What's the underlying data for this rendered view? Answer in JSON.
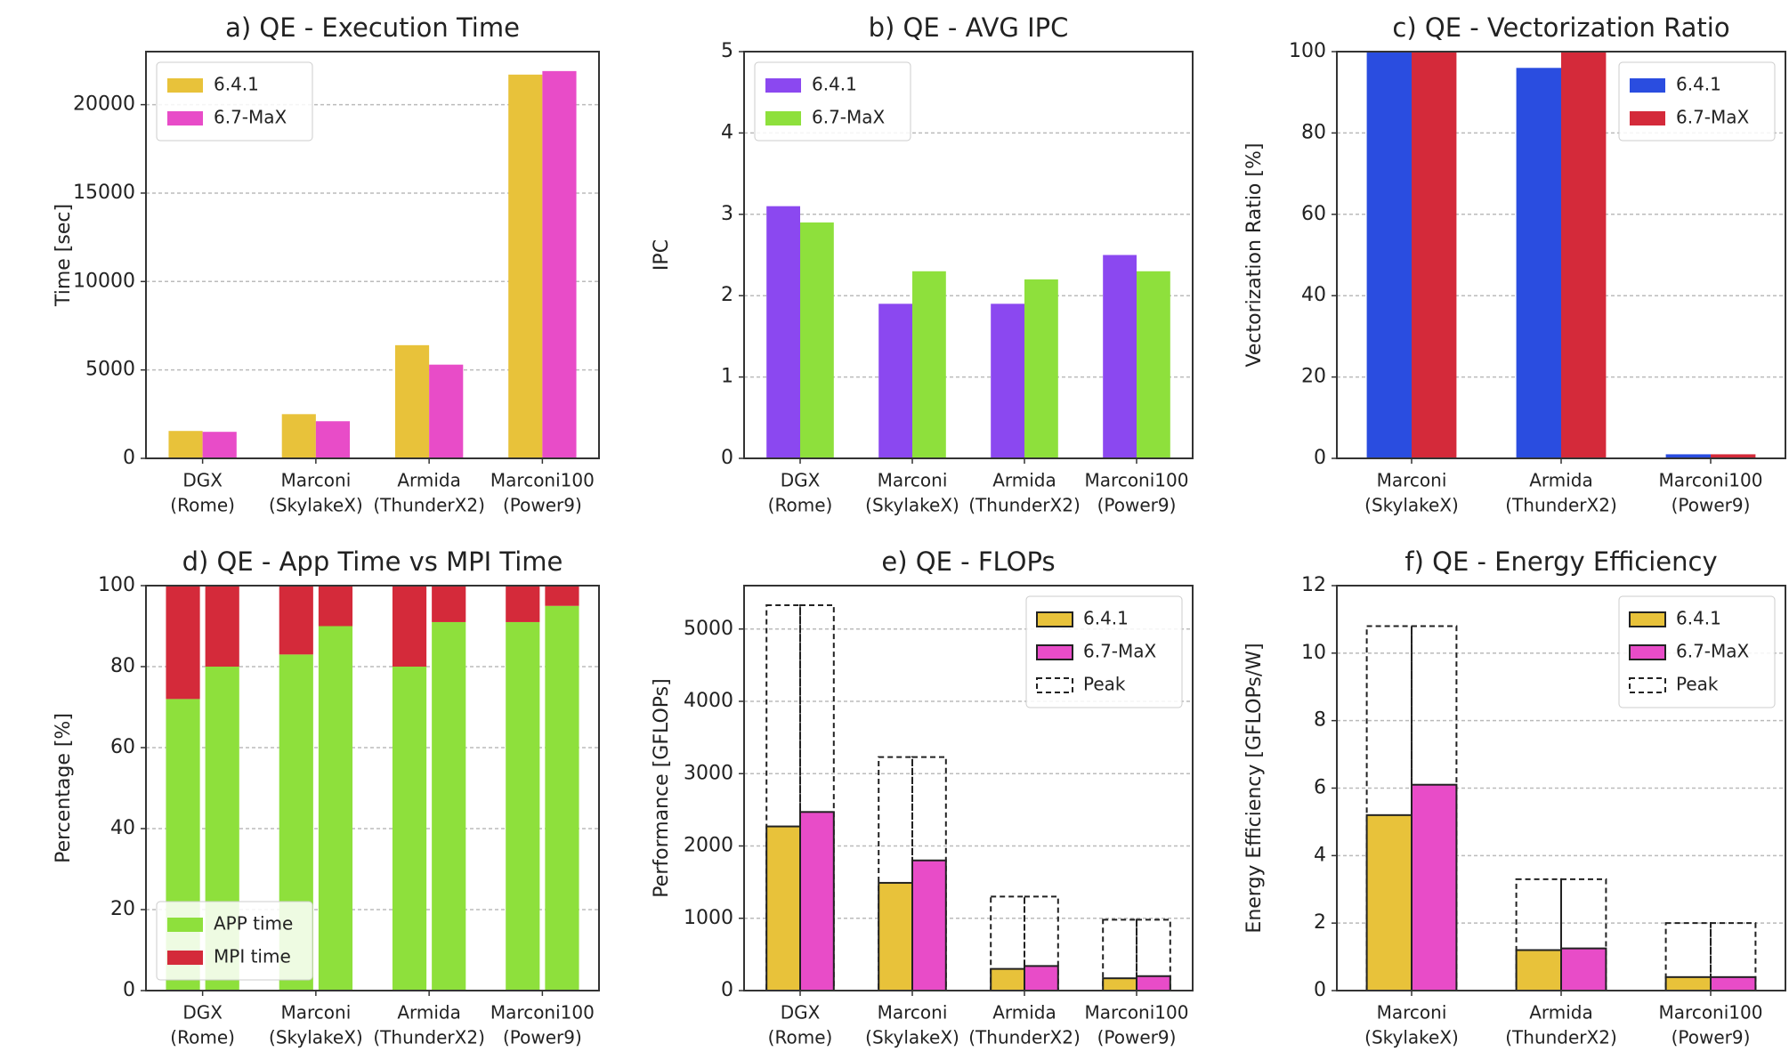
{
  "chart_data": [
    {
      "type": "bar",
      "title": "a) QE - Execution Time",
      "ylabel": "Time [sec]",
      "categories": [
        [
          "DGX",
          "(Rome)"
        ],
        [
          "Marconi",
          "(SkylakeX)"
        ],
        [
          "Armida",
          "(ThunderX2)"
        ],
        [
          "Marconi100",
          "(Power9)"
        ]
      ],
      "series": [
        {
          "name": "6.4.1",
          "color": "#e8c23a",
          "values": [
            1550,
            2500,
            6400,
            21700
          ]
        },
        {
          "name": "6.7-MaX",
          "color": "#e84cc8",
          "values": [
            1500,
            2100,
            5300,
            21900
          ]
        }
      ],
      "ylim": [
        0,
        23000
      ],
      "yticks": [
        0,
        5000,
        10000,
        15000,
        20000
      ],
      "grid": true,
      "legend": "upper left"
    },
    {
      "type": "bar",
      "title": "b) QE - AVG IPC",
      "ylabel": "IPC",
      "categories": [
        [
          "DGX",
          "(Rome)"
        ],
        [
          "Marconi",
          "(SkylakeX)"
        ],
        [
          "Armida",
          "(ThunderX2)"
        ],
        [
          "Marconi100",
          "(Power9)"
        ]
      ],
      "series": [
        {
          "name": "6.4.1",
          "color": "#8b48f0",
          "values": [
            3.1,
            1.9,
            1.9,
            2.5
          ]
        },
        {
          "name": "6.7-MaX",
          "color": "#8ee03c",
          "values": [
            2.9,
            2.3,
            2.2,
            2.3
          ]
        }
      ],
      "ylim": [
        0,
        5
      ],
      "yticks": [
        0,
        1,
        2,
        3,
        4,
        5
      ],
      "grid": true,
      "legend": "upper left"
    },
    {
      "type": "bar",
      "title": "c) QE - Vectorization Ratio",
      "ylabel": "Vectorization Ratio [%]",
      "categories": [
        [
          "Marconi",
          "(SkylakeX)"
        ],
        [
          "Armida",
          "(ThunderX2)"
        ],
        [
          "Marconi100",
          "(Power9)"
        ]
      ],
      "series": [
        {
          "name": "6.4.1",
          "color": "#2a4de0",
          "values": [
            100,
            96,
            1
          ]
        },
        {
          "name": "6.7-MaX",
          "color": "#d42a3a",
          "values": [
            100,
            100,
            1
          ]
        }
      ],
      "ylim": [
        0,
        100
      ],
      "yticks": [
        0,
        20,
        40,
        60,
        80,
        100
      ],
      "grid": true,
      "legend": "upper right"
    },
    {
      "type": "stacked-bar",
      "title": "d) QE - App Time vs MPI Time",
      "ylabel": "Percentage [%]",
      "categories": [
        [
          "DGX",
          "(Rome)"
        ],
        [
          "Marconi",
          "(SkylakeX)"
        ],
        [
          "Armida",
          "(ThunderX2)"
        ],
        [
          "Marconi100",
          "(Power9)"
        ]
      ],
      "series": [
        {
          "name": "APP time",
          "color": "#8ee03c",
          "values": [
            [
              72,
              80
            ],
            [
              83,
              90
            ],
            [
              80,
              91
            ],
            [
              91,
              95
            ]
          ]
        },
        {
          "name": "MPI time",
          "color": "#d42a3a",
          "values": [
            [
              28,
              20
            ],
            [
              17,
              10
            ],
            [
              20,
              9
            ],
            [
              9,
              5
            ]
          ]
        }
      ],
      "ylim": [
        0,
        100
      ],
      "yticks": [
        0,
        20,
        40,
        60,
        80,
        100
      ],
      "grid": true,
      "legend": "lower left"
    },
    {
      "type": "bar",
      "title": "e) QE - FLOPs",
      "ylabel": "Performance [GFLOPs]",
      "categories": [
        [
          "DGX",
          "(Rome)"
        ],
        [
          "Marconi",
          "(SkylakeX)"
        ],
        [
          "Armida",
          "(ThunderX2)"
        ],
        [
          "Marconi100",
          "(Power9)"
        ]
      ],
      "series": [
        {
          "name": "6.4.1",
          "color": "#e8c23a",
          "values": [
            2270,
            1490,
            300,
            170
          ]
        },
        {
          "name": "6.7-MaX",
          "color": "#e84cc8",
          "values": [
            2470,
            1800,
            340,
            200
          ]
        },
        {
          "name": "Peak",
          "color": "none",
          "linestyle": "dashed",
          "values": [
            5330,
            3230,
            1300,
            980
          ]
        }
      ],
      "edgecolor": "#222222",
      "ylim": [
        0,
        5600
      ],
      "yticks": [
        0,
        1000,
        2000,
        3000,
        4000,
        5000
      ],
      "grid": true,
      "legend": "upper right"
    },
    {
      "type": "bar",
      "title": "f) QE - Energy Efficiency",
      "ylabel": "Energy Efficiency [GFLOPs/W]",
      "categories": [
        [
          "Marconi",
          "(SkylakeX)"
        ],
        [
          "Armida",
          "(ThunderX2)"
        ],
        [
          "Marconi100",
          "(Power9)"
        ]
      ],
      "series": [
        {
          "name": "6.4.1",
          "color": "#e8c23a",
          "values": [
            5.2,
            1.2,
            0.4
          ]
        },
        {
          "name": "6.7-MaX",
          "color": "#e84cc8",
          "values": [
            6.1,
            1.25,
            0.4
          ]
        },
        {
          "name": "Peak",
          "color": "none",
          "linestyle": "dashed",
          "values": [
            10.8,
            3.3,
            2.0
          ]
        }
      ],
      "edgecolor": "#222222",
      "ylim": [
        0,
        12
      ],
      "yticks": [
        0,
        2,
        4,
        6,
        8,
        10,
        12
      ],
      "grid": true,
      "legend": "upper right"
    }
  ]
}
